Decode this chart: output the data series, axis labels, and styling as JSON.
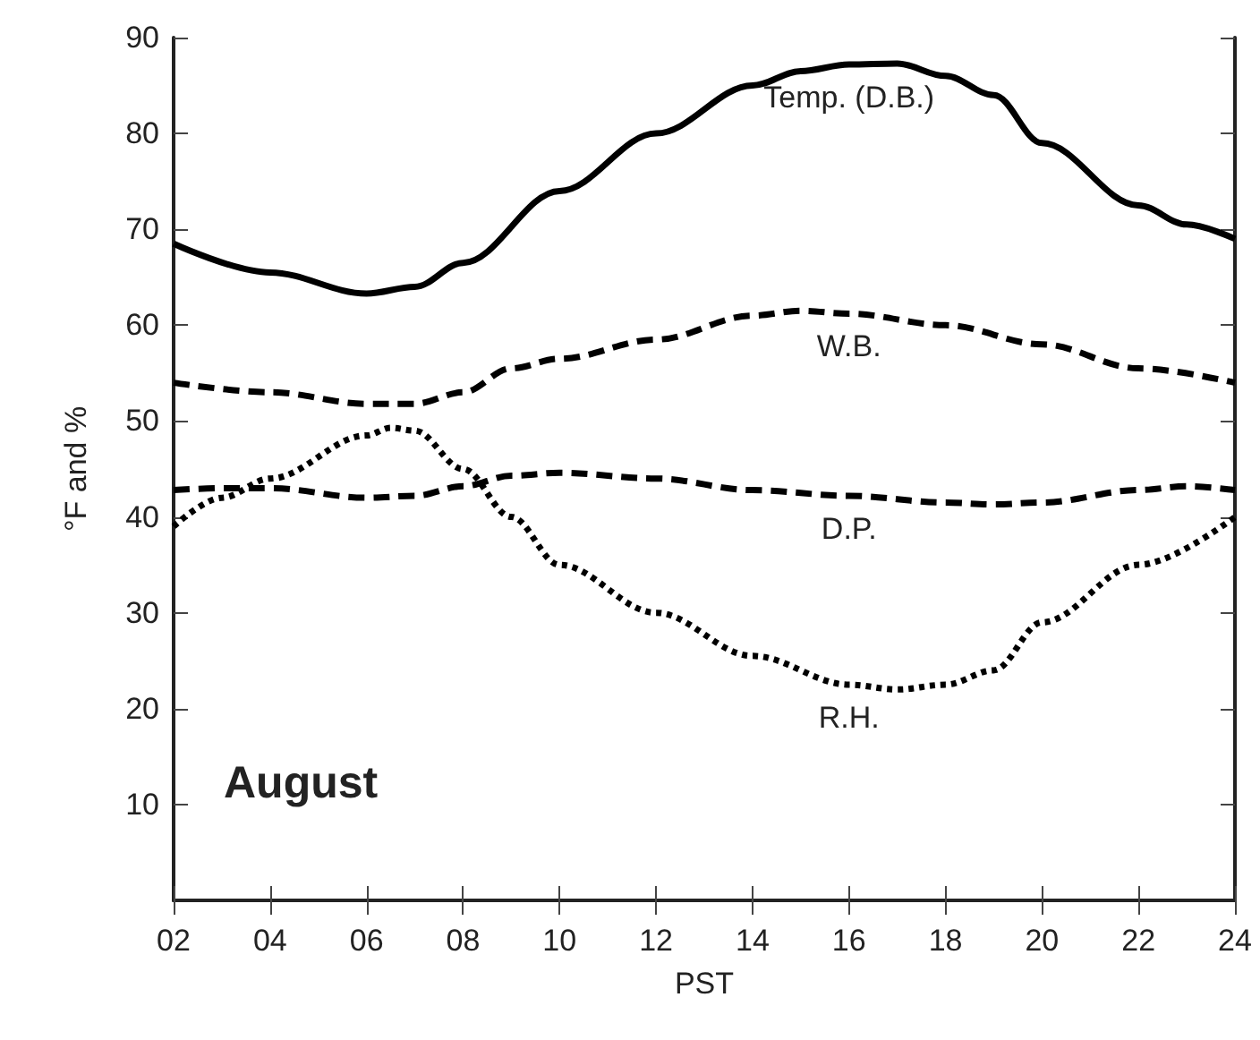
{
  "chart_data": {
    "type": "line",
    "xlabel": "PST",
    "ylabel": "°F and %",
    "xlim": [
      2,
      24
    ],
    "xticks": [
      {
        "value": 2,
        "label": "02"
      },
      {
        "value": 4,
        "label": "04"
      },
      {
        "value": 6,
        "label": "06"
      },
      {
        "value": 8,
        "label": "08"
      },
      10,
      12,
      14,
      16,
      18,
      20,
      22,
      24
    ],
    "ylim": [
      0,
      90
    ],
    "yticks": [
      10,
      20,
      30,
      40,
      50,
      60,
      70,
      80,
      90
    ],
    "grid": false,
    "legend": false,
    "marker": "none",
    "annotations": [
      "August"
    ],
    "series": [
      {
        "name": "Temp. (D.B.)",
        "color": "#000000",
        "line_style": "solid",
        "x": [
          2,
          4,
          6,
          7,
          8,
          10,
          12,
          14,
          15,
          16,
          17,
          18,
          19,
          20,
          22,
          23,
          24
        ],
        "values": [
          68.5,
          65.5,
          63.3,
          64,
          66.5,
          74,
          80,
          85,
          86.5,
          87.2,
          87.3,
          86,
          84,
          79,
          72.5,
          70.5,
          69
        ]
      },
      {
        "name": "W.B.",
        "color": "#000000",
        "line_style": "dashed",
        "x": [
          2,
          4,
          6,
          7,
          8,
          9,
          10,
          12,
          14,
          15,
          16,
          18,
          20,
          22,
          24
        ],
        "values": [
          54,
          53,
          51.8,
          51.8,
          53,
          55.5,
          56.5,
          58.5,
          61,
          61.5,
          61.2,
          60,
          58,
          55.5,
          54
        ]
      },
      {
        "name": "D.P.",
        "color": "#000000",
        "line_style": "dashed",
        "x": [
          2,
          3,
          4,
          6,
          7,
          8,
          9,
          10,
          12,
          14,
          16,
          18,
          19,
          20,
          22,
          23,
          24
        ],
        "values": [
          42.8,
          43,
          43,
          42,
          42.2,
          43.2,
          44.3,
          44.6,
          44,
          42.8,
          42.2,
          41.5,
          41.3,
          41.5,
          42.8,
          43.2,
          42.8
        ]
      },
      {
        "name": "R.H.",
        "color": "#000000",
        "line_style": "dotted",
        "x": [
          2,
          3,
          4,
          6,
          6.5,
          7,
          8,
          9,
          10,
          12,
          14,
          16,
          17,
          18,
          19,
          20,
          22,
          24
        ],
        "values": [
          39,
          42,
          44,
          48.5,
          49.3,
          49,
          45,
          40,
          35,
          30,
          25.5,
          22.5,
          22,
          22.5,
          24,
          29,
          35,
          40
        ]
      }
    ]
  }
}
